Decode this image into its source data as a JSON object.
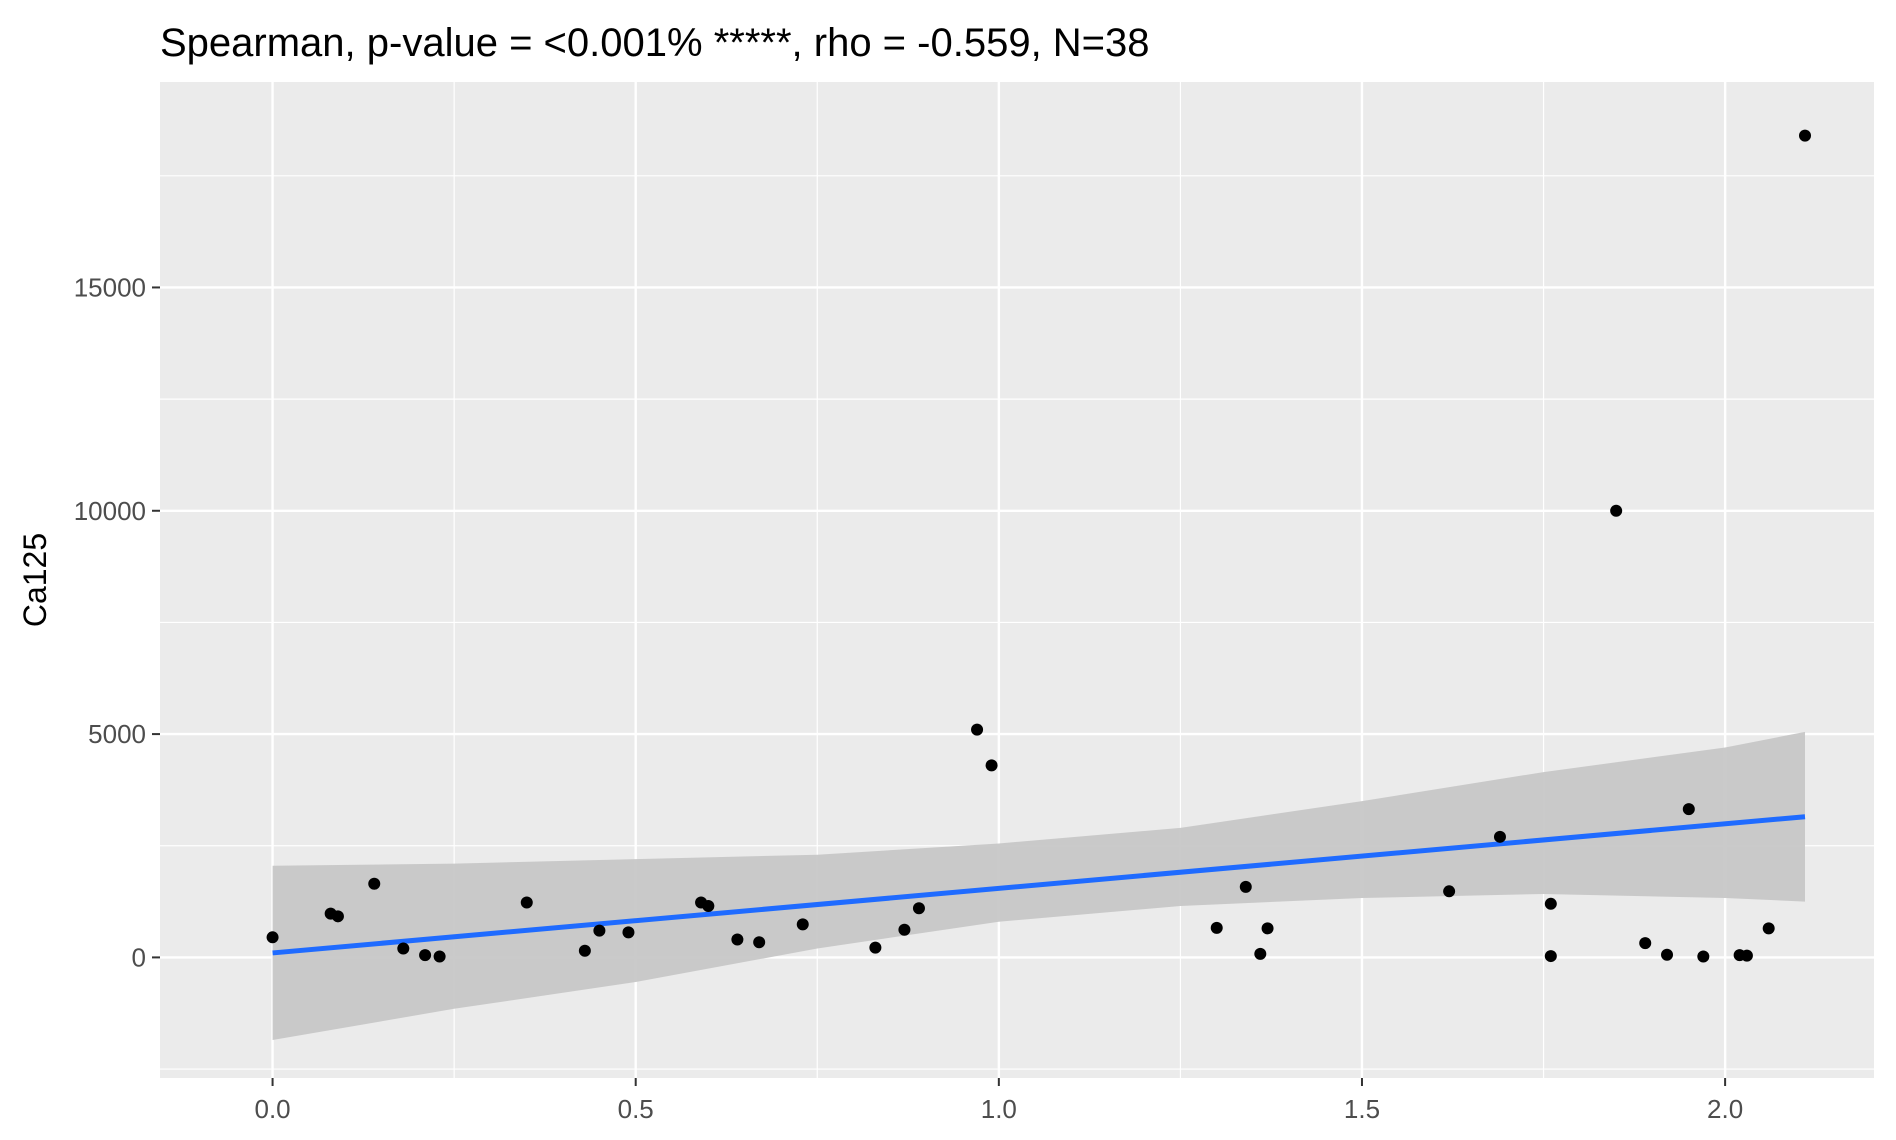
{
  "chart_data": {
    "type": "scatter",
    "title": "Spearman, p-value = <0.001% *****, rho = -0.559, N=38",
    "xlabel": "",
    "ylabel": "Ca125",
    "xlim": [
      -0.155,
      2.205
    ],
    "ylim": [
      -2700,
      19600
    ],
    "x_ticks": [
      0.0,
      0.5,
      1.0,
      1.5,
      2.0
    ],
    "x_tick_labels": [
      "0.0",
      "0.5",
      "1.0",
      "1.5",
      "2.0"
    ],
    "y_ticks": [
      0,
      5000,
      10000,
      15000
    ],
    "y_tick_labels": [
      "0",
      "5000",
      "10000",
      "15000"
    ],
    "grid": true,
    "legend": "none",
    "points": [
      {
        "x": 0.0,
        "y": 450
      },
      {
        "x": 0.08,
        "y": 980
      },
      {
        "x": 0.09,
        "y": 920
      },
      {
        "x": 0.14,
        "y": 1650
      },
      {
        "x": 0.18,
        "y": 200
      },
      {
        "x": 0.21,
        "y": 50
      },
      {
        "x": 0.23,
        "y": 20
      },
      {
        "x": 0.35,
        "y": 1230
      },
      {
        "x": 0.43,
        "y": 150
      },
      {
        "x": 0.45,
        "y": 600
      },
      {
        "x": 0.49,
        "y": 560
      },
      {
        "x": 0.59,
        "y": 1230
      },
      {
        "x": 0.6,
        "y": 1150
      },
      {
        "x": 0.64,
        "y": 400
      },
      {
        "x": 0.67,
        "y": 340
      },
      {
        "x": 0.73,
        "y": 740
      },
      {
        "x": 0.83,
        "y": 220
      },
      {
        "x": 0.87,
        "y": 620
      },
      {
        "x": 0.89,
        "y": 1100
      },
      {
        "x": 0.97,
        "y": 5100
      },
      {
        "x": 0.99,
        "y": 4300
      },
      {
        "x": 1.3,
        "y": 660
      },
      {
        "x": 1.34,
        "y": 1580
      },
      {
        "x": 1.36,
        "y": 80
      },
      {
        "x": 1.37,
        "y": 650
      },
      {
        "x": 1.62,
        "y": 1480
      },
      {
        "x": 1.69,
        "y": 2700
      },
      {
        "x": 1.76,
        "y": 1200
      },
      {
        "x": 1.76,
        "y": 30
      },
      {
        "x": 1.85,
        "y": 10000
      },
      {
        "x": 1.89,
        "y": 320
      },
      {
        "x": 1.92,
        "y": 60
      },
      {
        "x": 1.95,
        "y": 3320
      },
      {
        "x": 1.97,
        "y": 20
      },
      {
        "x": 2.02,
        "y": 50
      },
      {
        "x": 2.03,
        "y": 40
      },
      {
        "x": 2.06,
        "y": 650
      },
      {
        "x": 2.11,
        "y": 18400
      }
    ],
    "trend_line": {
      "x": [
        0.0,
        2.11
      ],
      "y": [
        100,
        3150
      ]
    },
    "confidence_band": {
      "x": [
        0.0,
        0.25,
        0.5,
        0.75,
        1.0,
        1.25,
        1.5,
        1.75,
        2.0,
        2.11
      ],
      "lower": [
        -1850,
        -1150,
        -550,
        200,
        800,
        1150,
        1330,
        1420,
        1330,
        1250
      ],
      "upper": [
        2050,
        2100,
        2200,
        2300,
        2550,
        2900,
        3500,
        4150,
        4700,
        5050
      ]
    },
    "colors": {
      "panel": "#ebebeb",
      "grid": "#ffffff",
      "points": "#000000",
      "trend": "#1f6bff",
      "band": "#c7c7c7"
    }
  }
}
